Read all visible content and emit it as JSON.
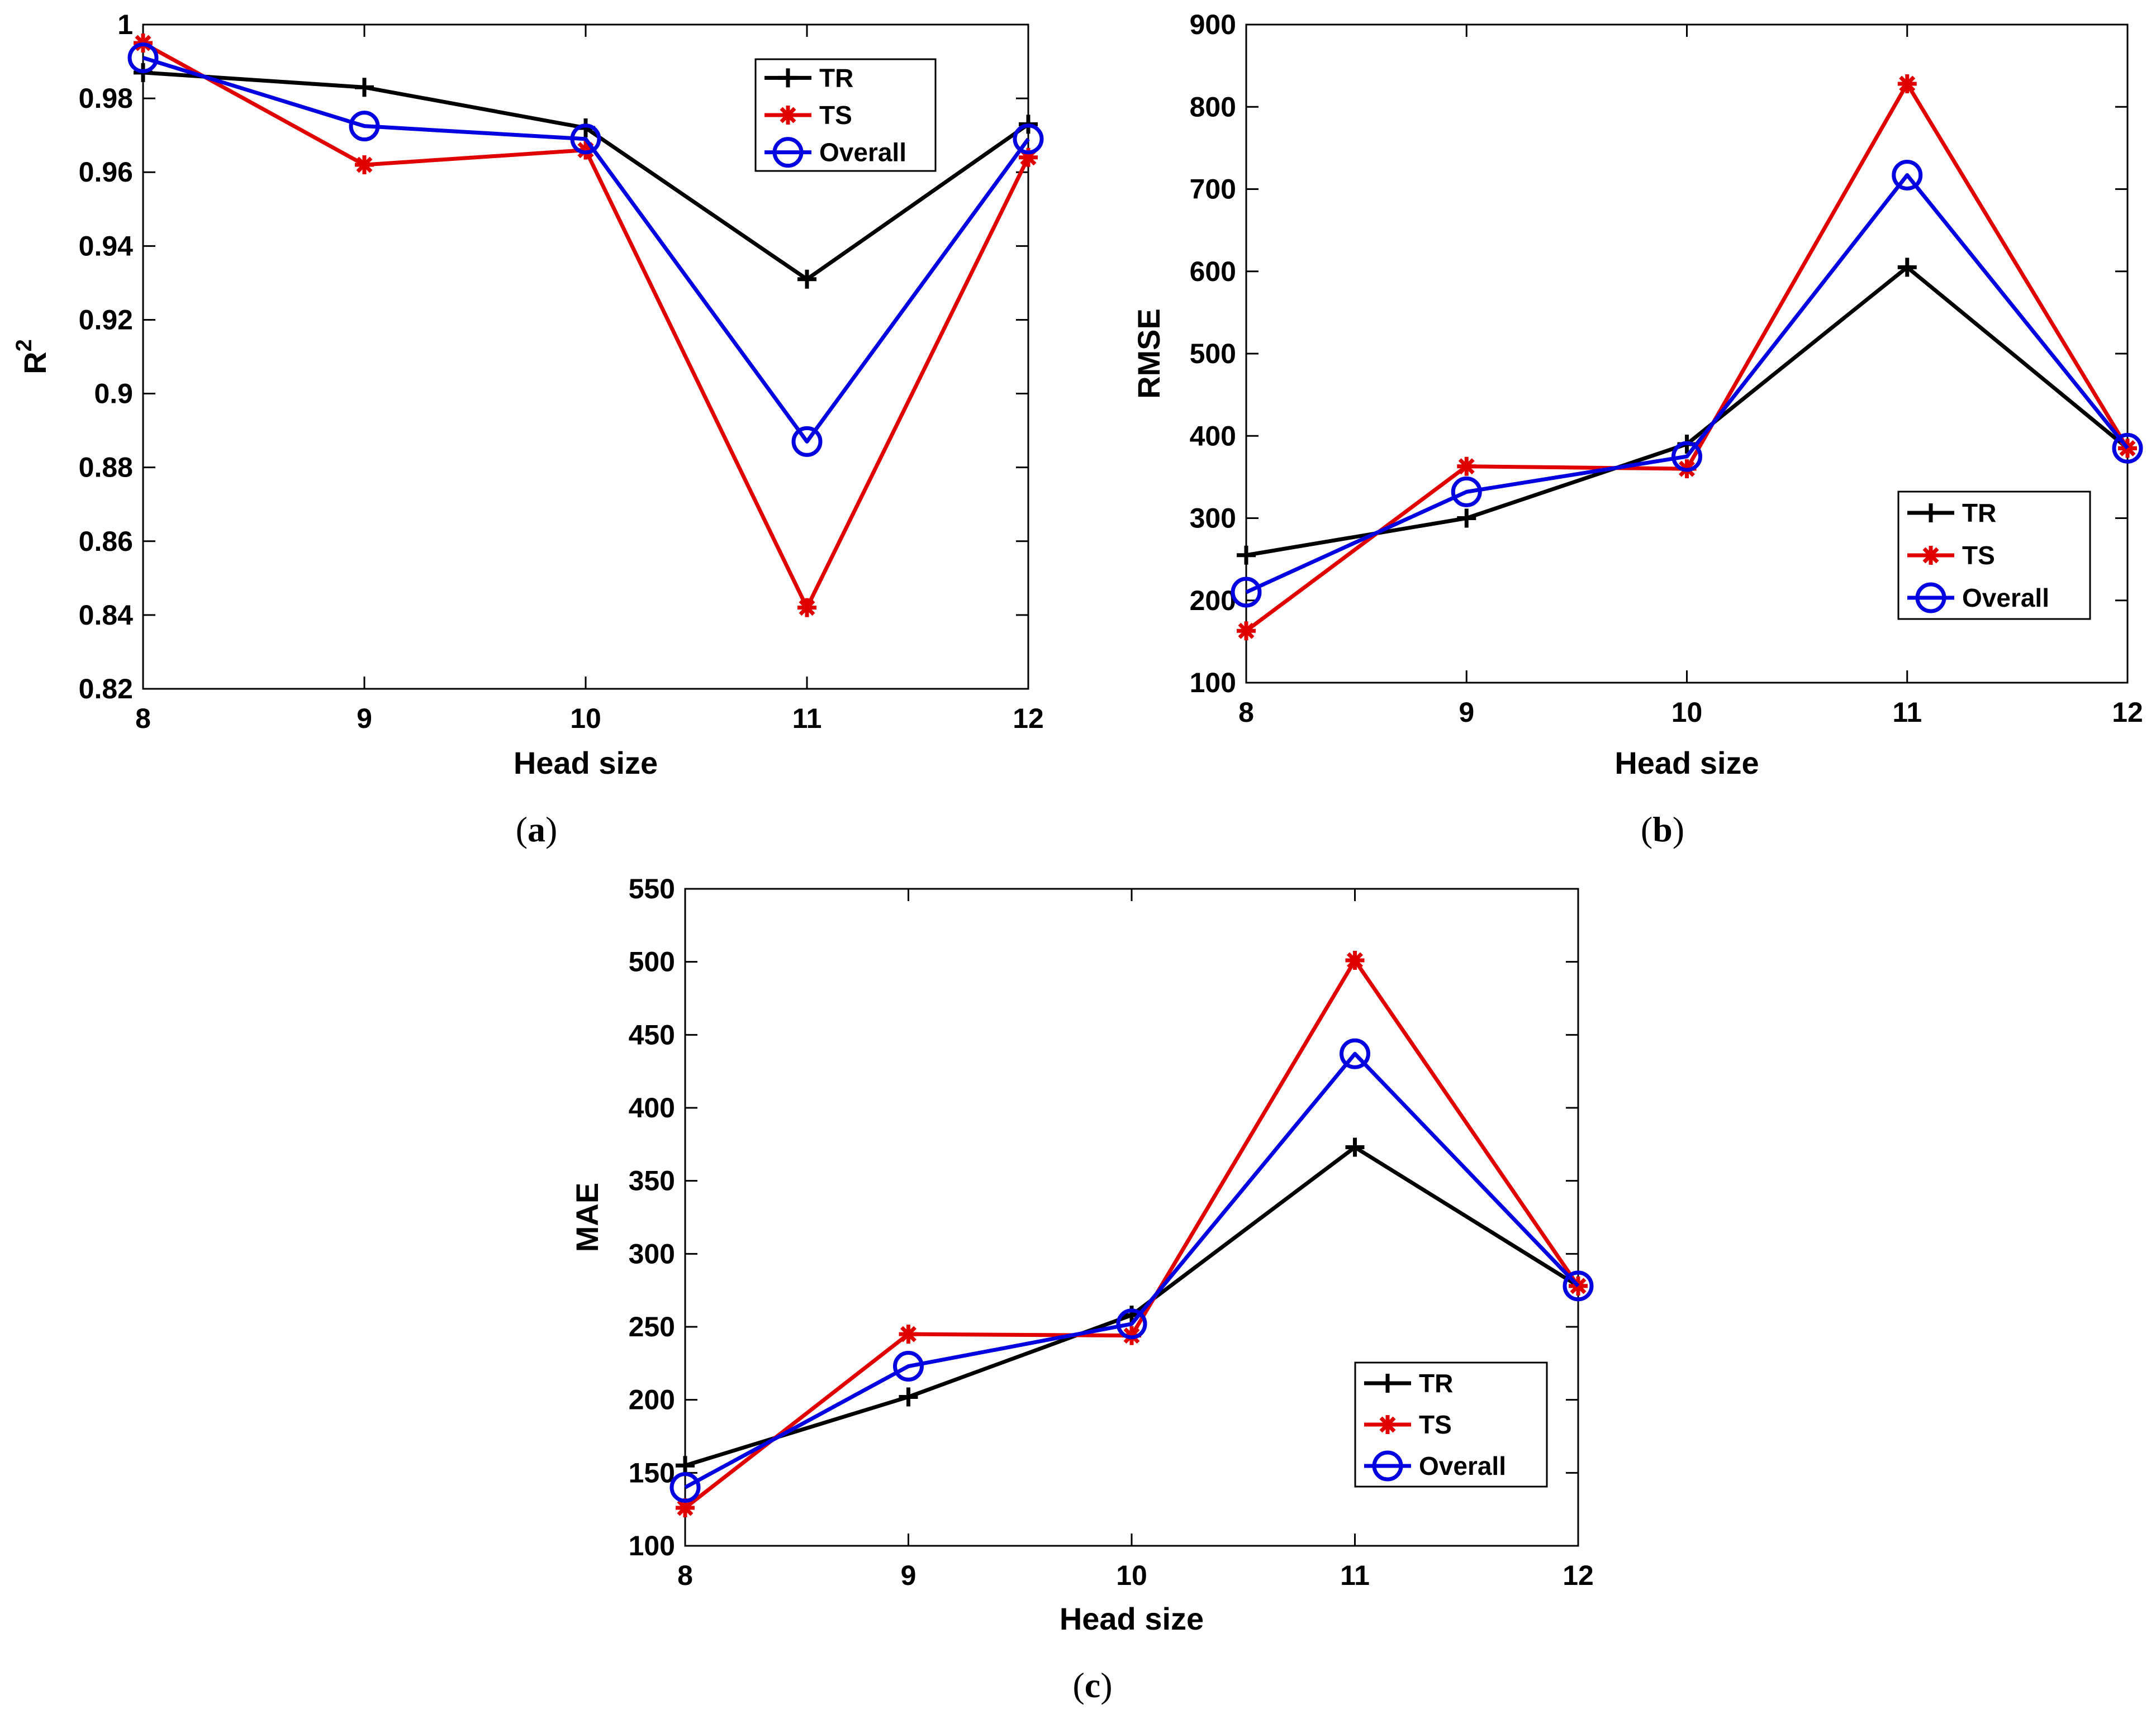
{
  "chart_data": [
    {
      "id": "a",
      "type": "line",
      "caption": "(a)",
      "xlabel": "Head size",
      "ylabel": "R",
      "ylabel_superscript": "2",
      "categories": [
        8,
        9,
        10,
        11,
        12
      ],
      "xlim": [
        8,
        12
      ],
      "ylim": [
        0.82,
        1
      ],
      "yticks": [
        0.82,
        0.84,
        0.86,
        0.88,
        0.9,
        0.92,
        0.94,
        0.96,
        0.98,
        1
      ],
      "ytick_labels": [
        "0.82",
        "0.84",
        "0.86",
        "0.88",
        "0.9",
        "0.92",
        "0.94",
        "0.96",
        "0.98",
        "1"
      ],
      "xtick_labels": [
        "8",
        "9",
        "10",
        "11",
        "12"
      ],
      "legend_position": "top-right",
      "series": [
        {
          "name": "TR",
          "color": "#000000",
          "marker": "plus",
          "values": [
            0.987,
            0.983,
            0.972,
            0.931,
            0.973
          ]
        },
        {
          "name": "TS",
          "color": "#e00000",
          "marker": "asterisk",
          "values": [
            0.995,
            0.962,
            0.966,
            0.842,
            0.964
          ]
        },
        {
          "name": "Overall",
          "color": "#0000e0",
          "marker": "circle",
          "values": [
            0.991,
            0.9725,
            0.969,
            0.887,
            0.969
          ]
        }
      ]
    },
    {
      "id": "b",
      "type": "line",
      "caption": "(b)",
      "xlabel": "Head size",
      "ylabel": "RMSE",
      "ylabel_superscript": "",
      "categories": [
        8,
        9,
        10,
        11,
        12
      ],
      "xlim": [
        8,
        12
      ],
      "ylim": [
        100,
        900
      ],
      "yticks": [
        100,
        200,
        300,
        400,
        500,
        600,
        700,
        800,
        900
      ],
      "ytick_labels": [
        "100",
        "200",
        "300",
        "400",
        "500",
        "600",
        "700",
        "800",
        "900"
      ],
      "xtick_labels": [
        "8",
        "9",
        "10",
        "11",
        "12"
      ],
      "legend_position": "lower-right",
      "series": [
        {
          "name": "TR",
          "color": "#000000",
          "marker": "plus",
          "values": [
            255,
            300,
            390,
            605,
            385
          ]
        },
        {
          "name": "TS",
          "color": "#e00000",
          "marker": "asterisk",
          "values": [
            163,
            363,
            360,
            828,
            385
          ]
        },
        {
          "name": "Overall",
          "color": "#0000e0",
          "marker": "circle",
          "values": [
            210,
            332,
            375,
            717,
            385
          ]
        }
      ]
    },
    {
      "id": "c",
      "type": "line",
      "caption": "(c)",
      "xlabel": "Head size",
      "ylabel": "MAE",
      "ylabel_superscript": "",
      "categories": [
        8,
        9,
        10,
        11,
        12
      ],
      "xlim": [
        8,
        12
      ],
      "ylim": [
        100,
        550
      ],
      "yticks": [
        100,
        150,
        200,
        250,
        300,
        350,
        400,
        450,
        500,
        550
      ],
      "ytick_labels": [
        "100",
        "150",
        "200",
        "250",
        "300",
        "350",
        "400",
        "450",
        "500",
        "550"
      ],
      "xtick_labels": [
        "8",
        "9",
        "10",
        "11",
        "12"
      ],
      "legend_position": "lower-right",
      "series": [
        {
          "name": "TR",
          "color": "#000000",
          "marker": "plus",
          "values": [
            155,
            202,
            258,
            373,
            278
          ]
        },
        {
          "name": "TS",
          "color": "#e00000",
          "marker": "asterisk",
          "values": [
            126,
            245,
            244,
            501,
            278
          ]
        },
        {
          "name": "Overall",
          "color": "#0000e0",
          "marker": "circle",
          "values": [
            140,
            223,
            252,
            437,
            278
          ]
        }
      ]
    }
  ]
}
